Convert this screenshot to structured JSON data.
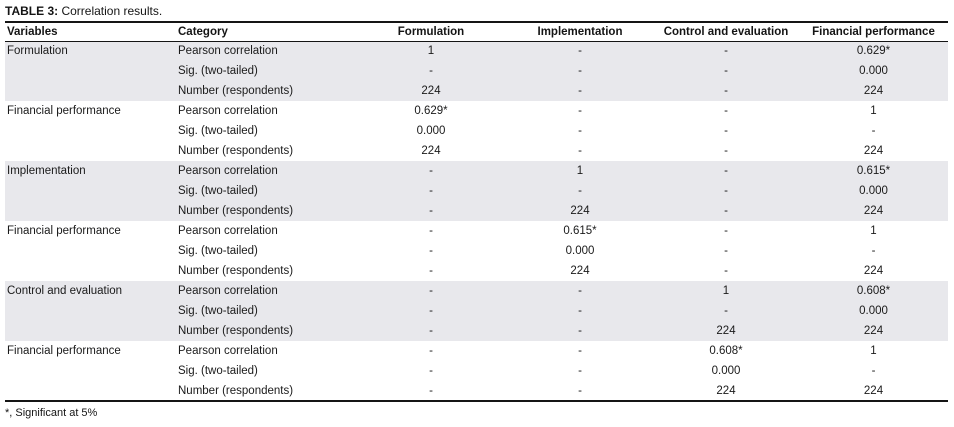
{
  "title": {
    "label": "TABLE 3:",
    "text": " Correlation results."
  },
  "footnote": "*, Significant at 5%",
  "colors": {
    "stripe": "#e8e8ec",
    "border": "#151515",
    "text": "#1a1a1a"
  },
  "table": {
    "columns": [
      "Variables",
      "Category",
      "Formulation",
      "Implementation",
      "Control and evaluation",
      "Financial performance"
    ],
    "groups": [
      {
        "variable": "Formulation",
        "shaded": true,
        "rows": [
          {
            "category": "Pearson correlation",
            "values": [
              "1",
              "-",
              "-",
              "0.629*"
            ]
          },
          {
            "category": "Sig. (two-tailed)",
            "values": [
              "-",
              "-",
              "-",
              "0.000"
            ]
          },
          {
            "category": "Number (respondents)",
            "values": [
              "224",
              "-",
              "-",
              "224"
            ]
          }
        ]
      },
      {
        "variable": "Financial performance",
        "shaded": false,
        "rows": [
          {
            "category": "Pearson correlation",
            "values": [
              "0.629*",
              "-",
              "-",
              "1"
            ]
          },
          {
            "category": "Sig. (two-tailed)",
            "values": [
              "0.000",
              "-",
              "-",
              "-"
            ]
          },
          {
            "category": "Number (respondents)",
            "values": [
              "224",
              "-",
              "-",
              "224"
            ]
          }
        ]
      },
      {
        "variable": "Implementation",
        "shaded": true,
        "rows": [
          {
            "category": "Pearson correlation",
            "values": [
              "-",
              "1",
              "-",
              "0.615*"
            ]
          },
          {
            "category": "Sig. (two-tailed)",
            "values": [
              "-",
              "-",
              "-",
              "0.000"
            ]
          },
          {
            "category": "Number (respondents)",
            "values": [
              "-",
              "224",
              "-",
              "224"
            ]
          }
        ]
      },
      {
        "variable": "Financial performance",
        "shaded": false,
        "rows": [
          {
            "category": "Pearson correlation",
            "values": [
              "-",
              "0.615*",
              "-",
              "1"
            ]
          },
          {
            "category": "Sig. (two-tailed)",
            "values": [
              "-",
              "0.000",
              "-",
              "-"
            ]
          },
          {
            "category": "Number (respondents)",
            "values": [
              "-",
              "224",
              "-",
              "224"
            ]
          }
        ]
      },
      {
        "variable": "Control and evaluation",
        "shaded": true,
        "rows": [
          {
            "category": "Pearson correlation",
            "values": [
              "-",
              "-",
              "1",
              "0.608*"
            ]
          },
          {
            "category": "Sig. (two-tailed)",
            "values": [
              "-",
              "-",
              "-",
              "0.000"
            ]
          },
          {
            "category": "Number (respondents)",
            "values": [
              "-",
              "-",
              "224",
              "224"
            ]
          }
        ]
      },
      {
        "variable": "Financial performance",
        "shaded": false,
        "rows": [
          {
            "category": "Pearson correlation",
            "values": [
              "-",
              "-",
              "0.608*",
              "1"
            ]
          },
          {
            "category": "Sig. (two-tailed)",
            "values": [
              "-",
              "-",
              "0.000",
              "-"
            ]
          },
          {
            "category": "Number (respondents)",
            "values": [
              "-",
              "-",
              "224",
              "224"
            ]
          }
        ]
      }
    ]
  }
}
